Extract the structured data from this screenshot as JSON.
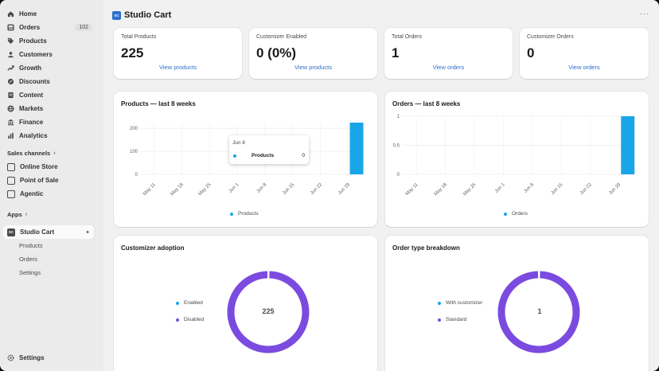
{
  "sidebar": {
    "nav": [
      {
        "label": "Home",
        "icon": "home-icon"
      },
      {
        "label": "Orders",
        "icon": "orders-icon",
        "badge": "102"
      },
      {
        "label": "Products",
        "icon": "tag-icon"
      },
      {
        "label": "Customers",
        "icon": "person-icon"
      },
      {
        "label": "Growth",
        "icon": "growth-icon"
      },
      {
        "label": "Discounts",
        "icon": "discount-icon"
      },
      {
        "label": "Content",
        "icon": "content-icon"
      },
      {
        "label": "Markets",
        "icon": "globe-icon"
      },
      {
        "label": "Finance",
        "icon": "bank-icon"
      },
      {
        "label": "Analytics",
        "icon": "bar-chart-icon"
      }
    ],
    "sales_channels_label": "Sales channels",
    "channels": [
      {
        "label": "Online Store"
      },
      {
        "label": "Point of Sale"
      },
      {
        "label": "Agentic"
      }
    ],
    "apps_label": "Apps",
    "app": {
      "label": "Studio Cart",
      "icon_text": "SC"
    },
    "app_sub": [
      {
        "label": "Products"
      },
      {
        "label": "Orders"
      },
      {
        "label": "Settings"
      }
    ],
    "settings_label": "Settings"
  },
  "header": {
    "title": "Studio Cart",
    "logo_text": "SC",
    "more": "···"
  },
  "stats": [
    {
      "label": "Total Products",
      "value": "225",
      "link": "View products"
    },
    {
      "label": "Customizer Enabled",
      "value": "0 (0%)",
      "link": "View products"
    },
    {
      "label": "Total Orders",
      "value": "1",
      "link": "View orders"
    },
    {
      "label": "Customizer Orders",
      "value": "0",
      "link": "View orders"
    }
  ],
  "colors": {
    "accent": "#2c6ecb",
    "bar": "#1aa5e8",
    "donut": "#7b4be0",
    "sidebar_bg": "#ebebeb"
  },
  "products_chart": {
    "title": "Products — last 8 weeks",
    "legend": "Products",
    "tooltip": {
      "date": "Jun 8",
      "name": "Products",
      "value": "0"
    }
  },
  "orders_chart": {
    "title": "Orders — last 8 weeks",
    "legend": "Orders"
  },
  "adoption": {
    "title": "Customizer adoption",
    "center": "225",
    "legend": [
      {
        "label": "Enabled",
        "color": "#1aa5e8"
      },
      {
        "label": "Disabled",
        "color": "#7b4be0"
      }
    ]
  },
  "breakdown": {
    "title": "Order type breakdown",
    "center": "1",
    "legend": [
      {
        "label": "With customizer",
        "color": "#1aa5e8"
      },
      {
        "label": "Standard",
        "color": "#7b4be0"
      }
    ]
  },
  "chart_data": [
    {
      "type": "bar",
      "title": "Products — last 8 weeks",
      "categories": [
        "May 11",
        "May 18",
        "May 25",
        "Jun 1",
        "Jun 8",
        "Jun 15",
        "Jun 22",
        "Jun 29"
      ],
      "series": [
        {
          "name": "Products",
          "values": [
            0,
            0,
            0,
            0,
            0,
            0,
            0,
            225
          ]
        }
      ],
      "yticks": [
        "0",
        "100",
        "200"
      ],
      "ylim": [
        0,
        225
      ],
      "grid": true
    },
    {
      "type": "bar",
      "title": "Orders — last 8 weeks",
      "categories": [
        "May 11",
        "May 18",
        "May 25",
        "Jun 1",
        "Jun 8",
        "Jun 15",
        "Jun 22",
        "Jun 29"
      ],
      "series": [
        {
          "name": "Orders",
          "values": [
            0,
            0,
            0,
            0,
            0,
            0,
            0,
            1
          ]
        }
      ],
      "yticks": [
        "0",
        "0.5",
        "1"
      ],
      "ylim": [
        0,
        1
      ],
      "grid": true
    },
    {
      "type": "pie",
      "title": "Customizer adoption",
      "categories": [
        "Enabled",
        "Disabled"
      ],
      "values": [
        0,
        225
      ]
    },
    {
      "type": "pie",
      "title": "Order type breakdown",
      "categories": [
        "With customizer",
        "Standard"
      ],
      "values": [
        0,
        1
      ]
    }
  ]
}
